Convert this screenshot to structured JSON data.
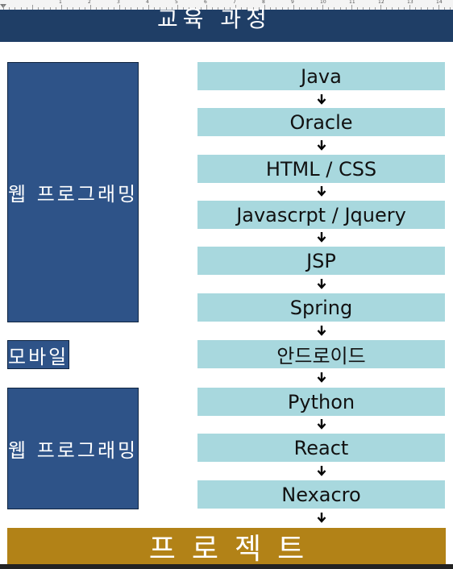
{
  "ruler": {
    "marks": [
      "1",
      "2",
      "3",
      "4",
      "5",
      "6",
      "7",
      "8",
      "9",
      "10",
      "11",
      "12",
      "13",
      "14",
      "15"
    ]
  },
  "title": "교육 과정",
  "groups": [
    {
      "label": "웹 프로그래밍"
    },
    {
      "label": "모바일"
    },
    {
      "label": "웹 프로그래밍"
    }
  ],
  "courses": [
    "Java",
    "Oracle",
    "HTML / CSS",
    "Javascrpt / Jquery",
    "JSP",
    "Spring",
    "안드로이드",
    "Python",
    "React",
    "Nexacro"
  ],
  "project": "프로젝트",
  "colors": {
    "title_bg": "#1f3e66",
    "group_bg": "#2e5388",
    "course_bg": "#a8d8de",
    "project_bg": "#b28217"
  },
  "icons": {
    "arrow": "arrow-down-icon"
  }
}
